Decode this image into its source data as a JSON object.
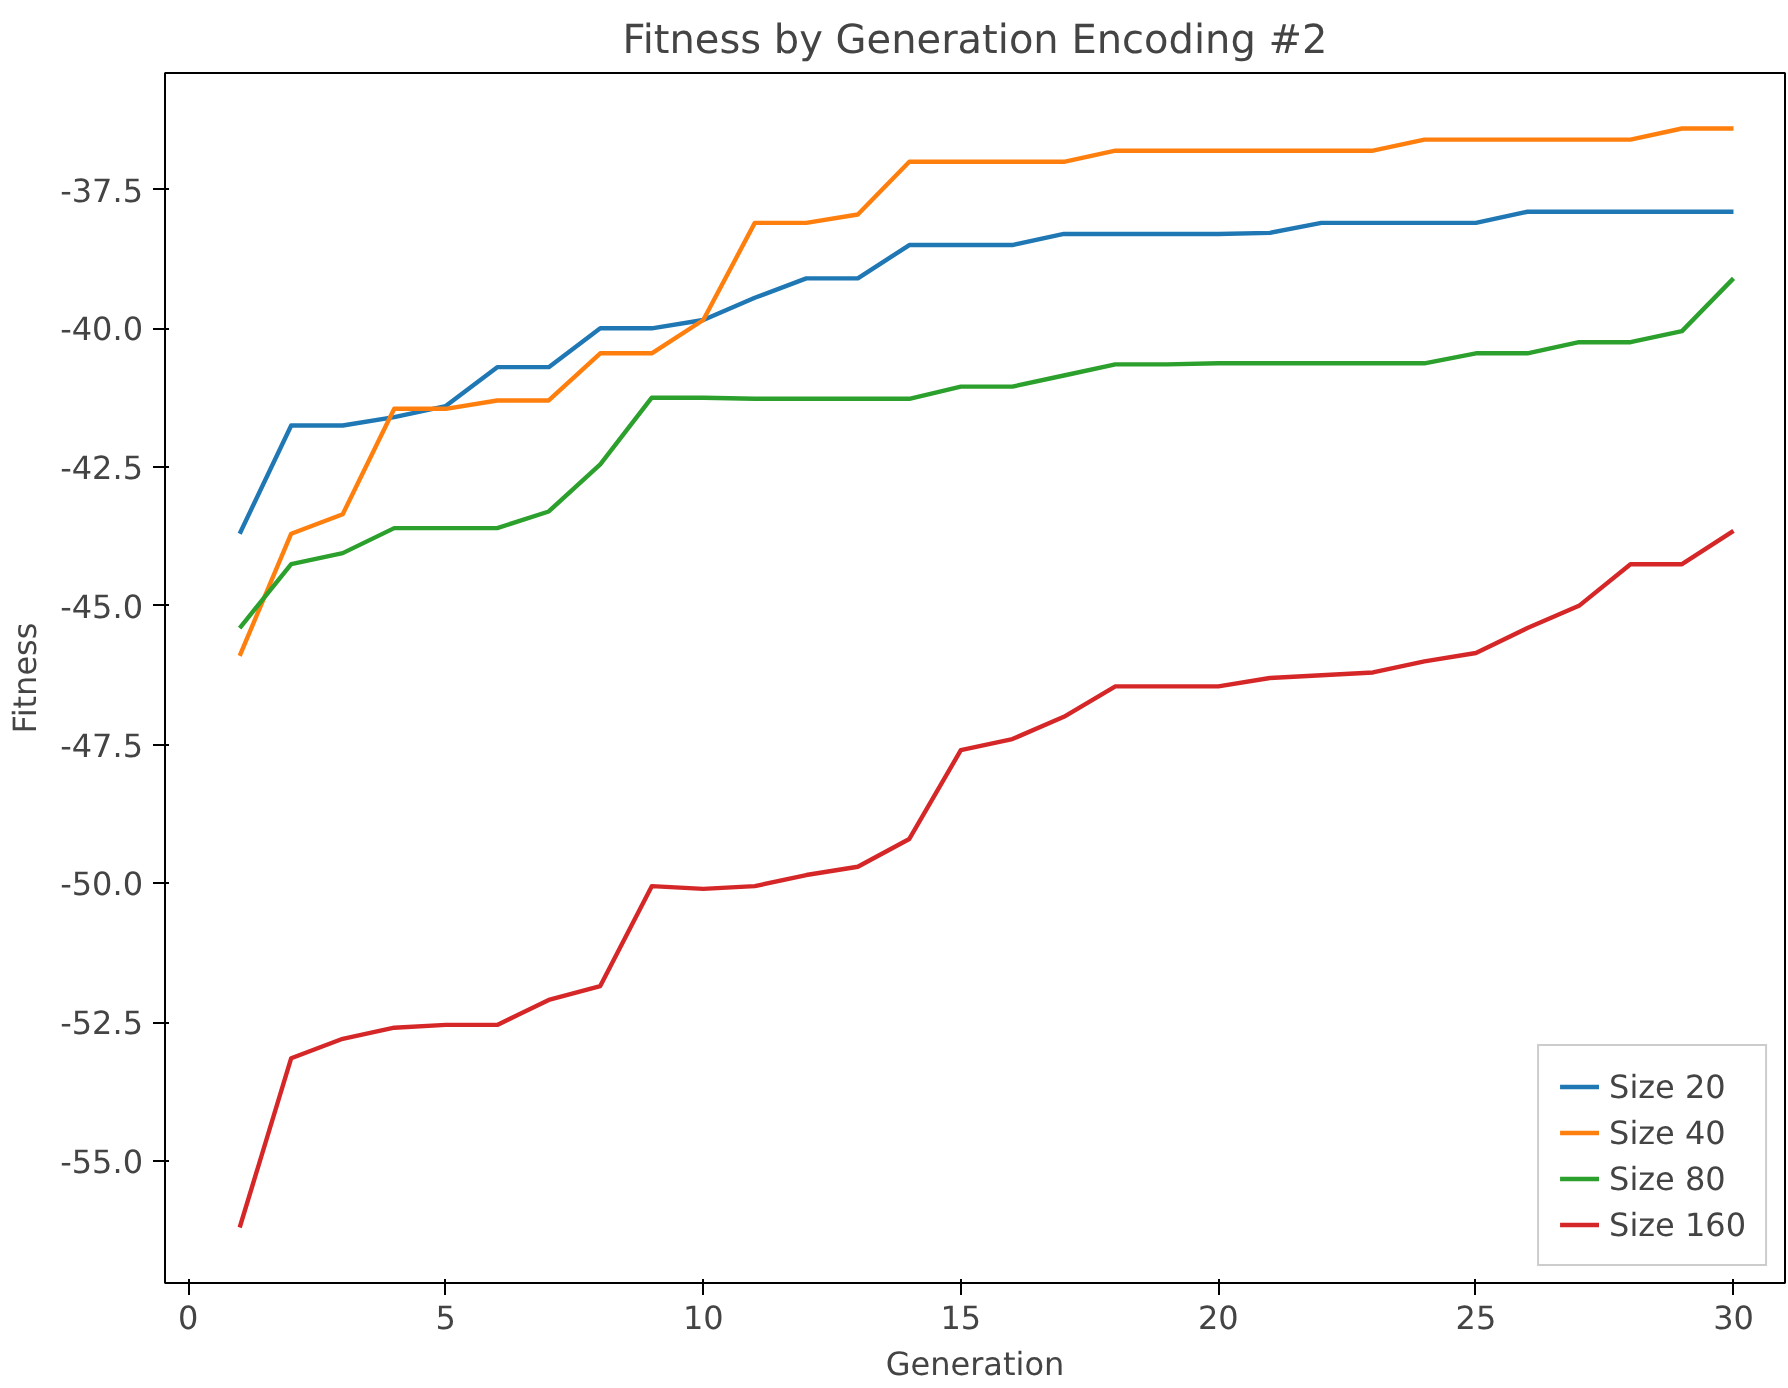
{
  "chart_data": {
    "type": "line",
    "title": "Fitness by Generation Encoding #2",
    "xlabel": "Generation",
    "ylabel": "Fitness",
    "x": [
      1,
      2,
      3,
      4,
      5,
      6,
      7,
      8,
      9,
      10,
      11,
      12,
      13,
      14,
      15,
      16,
      17,
      18,
      19,
      20,
      21,
      22,
      23,
      24,
      25,
      26,
      27,
      28,
      29,
      30
    ],
    "series": [
      {
        "name": "Size 20",
        "color": "#1f77b4",
        "values": [
          -43.7,
          -41.75,
          -41.75,
          -41.6,
          -41.4,
          -40.7,
          -40.7,
          -40.0,
          -40.0,
          -39.85,
          -39.45,
          -39.1,
          -39.1,
          -38.5,
          -38.5,
          -38.5,
          -38.3,
          -38.3,
          -38.3,
          -38.3,
          -38.28,
          -38.1,
          -38.1,
          -38.1,
          -38.1,
          -37.9,
          -37.9,
          -37.9,
          -37.9,
          -37.9
        ]
      },
      {
        "name": "Size 40",
        "color": "#ff7f0e",
        "values": [
          -45.9,
          -43.7,
          -43.35,
          -41.45,
          -41.45,
          -41.3,
          -41.3,
          -40.45,
          -40.45,
          -39.85,
          -38.1,
          -38.1,
          -37.95,
          -37.0,
          -37.0,
          -37.0,
          -37.0,
          -36.8,
          -36.8,
          -36.8,
          -36.8,
          -36.8,
          -36.8,
          -36.6,
          -36.6,
          -36.6,
          -36.6,
          -36.6,
          -36.4,
          -36.4
        ]
      },
      {
        "name": "Size 80",
        "color": "#2ca02c",
        "values": [
          -45.4,
          -44.25,
          -44.05,
          -43.6,
          -43.6,
          -43.6,
          -43.3,
          -42.45,
          -41.25,
          -41.25,
          -41.27,
          -41.27,
          -41.27,
          -41.27,
          -41.05,
          -41.05,
          -40.85,
          -40.65,
          -40.65,
          -40.63,
          -40.63,
          -40.63,
          -40.63,
          -40.63,
          -40.45,
          -40.45,
          -40.25,
          -40.25,
          -40.05,
          -39.1
        ]
      },
      {
        "name": "Size 160",
        "color": "#d62728",
        "values": [
          -56.2,
          -53.15,
          -52.8,
          -52.6,
          -52.55,
          -52.55,
          -52.1,
          -51.85,
          -50.05,
          -50.1,
          -50.05,
          -49.85,
          -49.7,
          -49.2,
          -47.6,
          -47.4,
          -47.0,
          -46.45,
          -46.45,
          -46.45,
          -46.3,
          -46.25,
          -46.2,
          -46.0,
          -45.85,
          -45.4,
          -45.0,
          -44.25,
          -44.25,
          -43.65
        ]
      }
    ],
    "xlim": [
      -0.45,
      31.0
    ],
    "ylim": [
      -57.2,
      -35.4
    ],
    "xticks": [
      0,
      5,
      10,
      15,
      20,
      25,
      30
    ],
    "yticks": [
      -37.5,
      {
        "value": -40,
        "label": "-40.0"
      },
      -42.5,
      {
        "value": -45,
        "label": "-45.0"
      },
      -47.5,
      {
        "value": -50,
        "label": "-50.0"
      },
      -52.5,
      {
        "value": -55,
        "label": "-55.0"
      }
    ],
    "grid": false,
    "legend": "bottom right",
    "marker": "none",
    "line_style": "solid"
  }
}
